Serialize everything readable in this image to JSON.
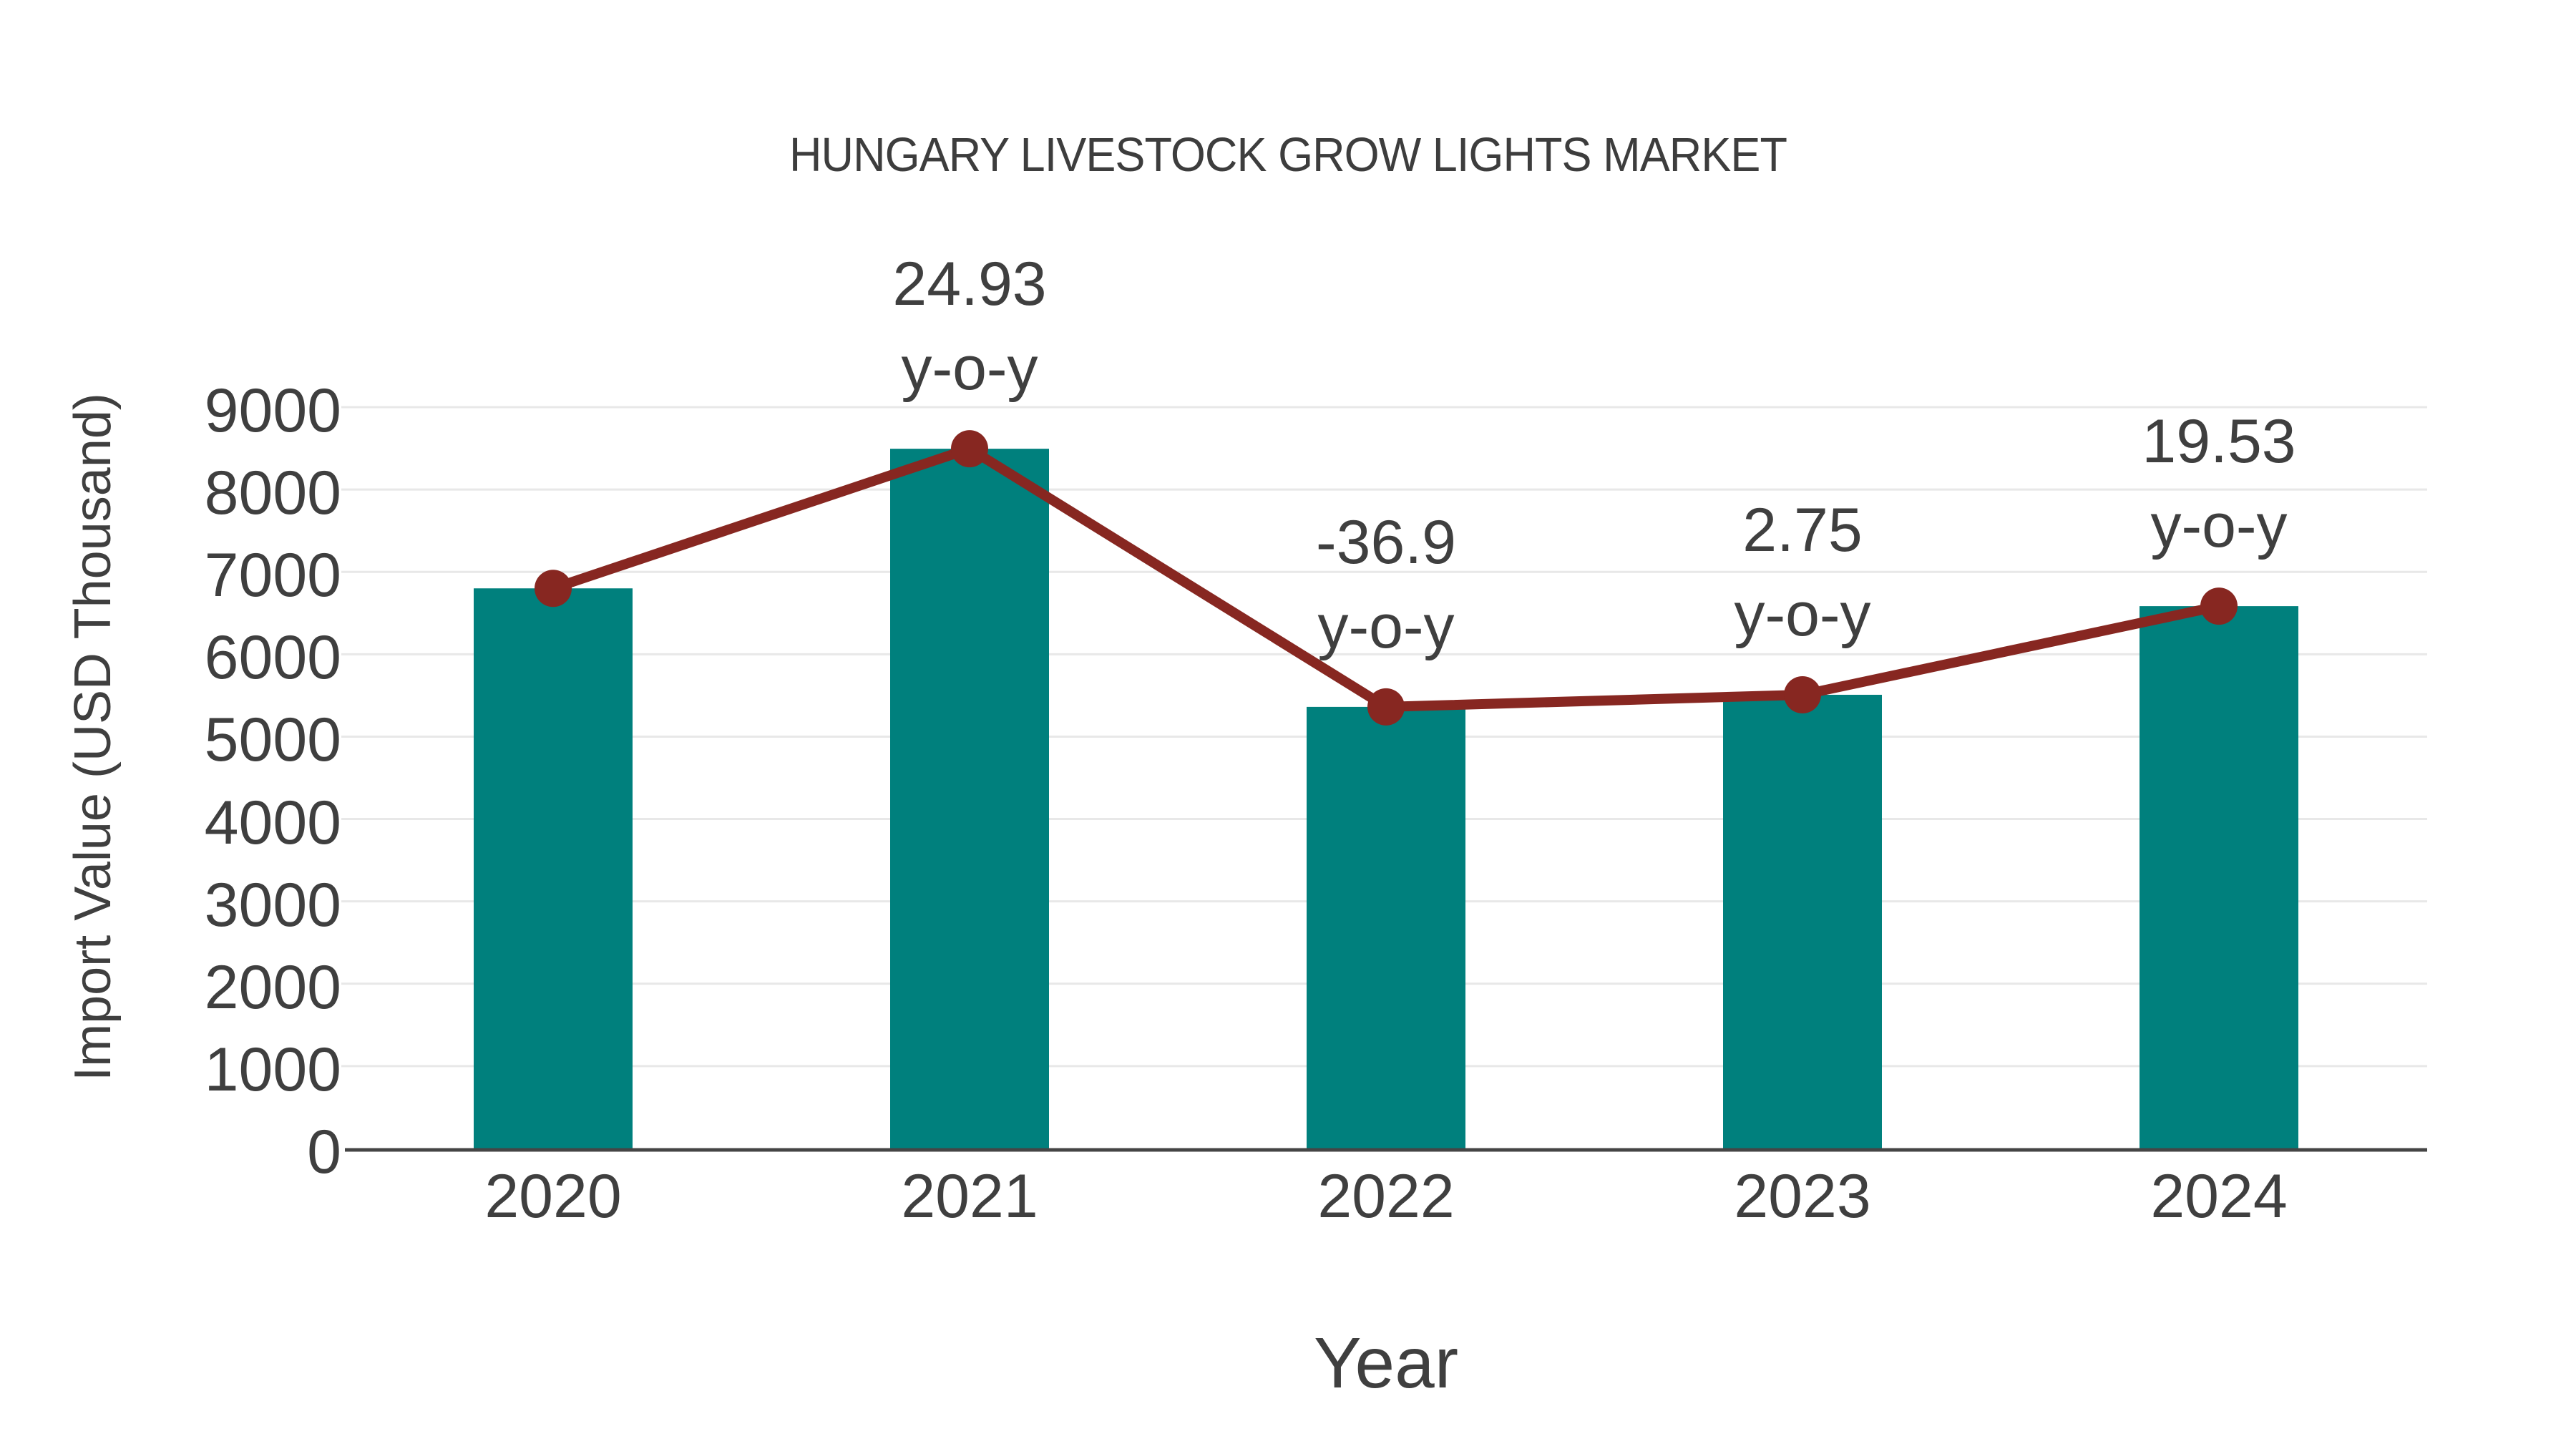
{
  "chart_data": {
    "type": "bar",
    "title": "HUNGARY LIVESTOCK GROW LIGHTS MARKET",
    "xlabel": "Year",
    "ylabel": "Import Value (USD Thousand)",
    "categories": [
      "2020",
      "2021",
      "2022",
      "2023",
      "2024"
    ],
    "series": [
      {
        "name": "import-value-bars",
        "type": "bar",
        "values": [
          6800,
          8495,
          5361,
          5508,
          6584
        ],
        "color": "#00807d"
      },
      {
        "name": "yoy-trend-line",
        "type": "line",
        "values": [
          6800,
          8495,
          5361,
          5508,
          6584
        ],
        "color": "#872721"
      }
    ],
    "annotations": [
      {
        "category": "2021",
        "lines": [
          "24.93",
          "y-o-y"
        ]
      },
      {
        "category": "2022",
        "lines": [
          "-36.9",
          "y-o-y"
        ]
      },
      {
        "category": "2023",
        "lines": [
          "2.75",
          "y-o-y"
        ]
      },
      {
        "category": "2024",
        "lines": [
          "19.53",
          "y-o-y"
        ]
      }
    ],
    "ylim": [
      0,
      9000
    ],
    "ytick_step": 1000,
    "grid": "horizontal",
    "legend_position": "none",
    "axis_color": "#454545",
    "gridline_color": "#e8e8e8",
    "text_color": "#3f3f3f"
  }
}
